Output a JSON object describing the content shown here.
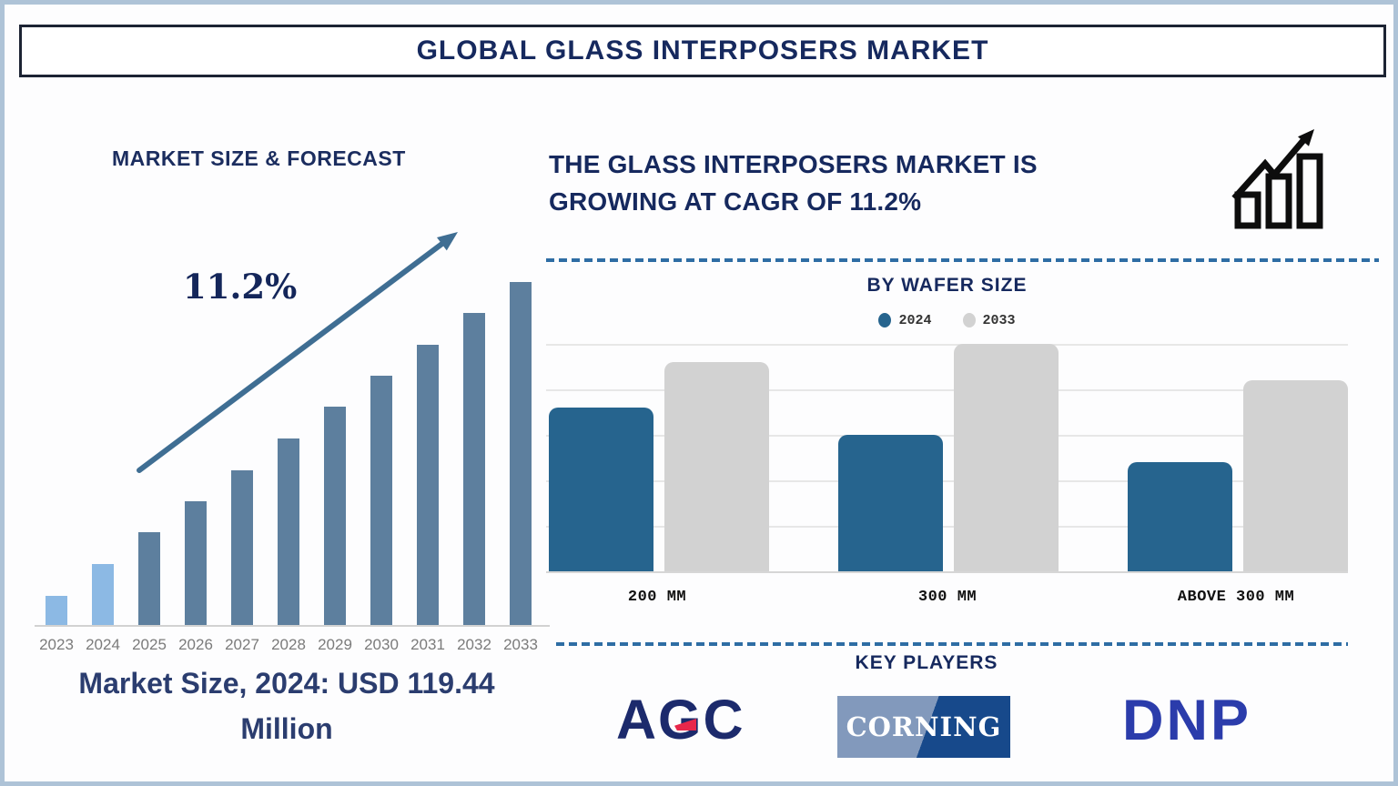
{
  "header": {
    "title": "GLOBAL GLASS INTERPOSERS MARKET"
  },
  "left_panel": {
    "section_title": "MARKET SIZE & FORECAST",
    "cagr_label": "11.2%",
    "caption": "Market Size, 2024: USD 119.44 Million"
  },
  "right_panel": {
    "headline": "THE GLASS INTERPOSERS MARKET IS GROWING AT CAGR OF 11.2%",
    "growth_icon": "growth-chart-icon",
    "key_players_title": "KEY PLAYERS",
    "players": [
      {
        "name": "AGC",
        "text_color": "#1c2a6c",
        "accent_color": "#e8274b"
      },
      {
        "name": "CORNING",
        "text_color": "#ffffff",
        "bg_left": "#8299bc",
        "bg_right": "#17498b"
      },
      {
        "name": "DNP",
        "text_color": "#2b3cab"
      }
    ]
  },
  "chart_data": [
    {
      "type": "bar",
      "title": "MARKET SIZE & FORECAST",
      "categories": [
        "2023",
        "2024",
        "2025",
        "2026",
        "2027",
        "2028",
        "2029",
        "2030",
        "2031",
        "2032",
        "2033"
      ],
      "values": [
        8.5,
        17.8,
        27,
        36,
        45,
        54.4,
        63.7,
        72.7,
        81.7,
        91,
        100
      ],
      "values_note": "relative bar heights in % of tallest (2033) bar; value axis not labeled in source",
      "known_point": {
        "year": "2024",
        "value": "USD 119.44 Million"
      },
      "annotation": "11.2%",
      "bar_colors": [
        "#8cb9e4",
        "#8cb9e4",
        "#5d7f9e",
        "#5d7f9e",
        "#5d7f9e",
        "#5d7f9e",
        "#5d7f9e",
        "#5d7f9e",
        "#5d7f9e",
        "#5d7f9e",
        "#5d7f9e"
      ],
      "grid": false,
      "legend": false,
      "xlabel": "",
      "ylabel": ""
    },
    {
      "type": "bar",
      "title": "BY WAFER SIZE",
      "categories": [
        "200 MM",
        "300 MM",
        "ABOVE 300 MM"
      ],
      "series": [
        {
          "name": "2024",
          "color": "#26648e",
          "values": [
            3.6,
            3.0,
            2.4
          ]
        },
        {
          "name": "2033",
          "color": "#d2d2d2",
          "values": [
            4.6,
            5.0,
            4.2
          ]
        }
      ],
      "values_note": "relative units read from unlabeled gridlines (1 unit = 1 gridline spacing)",
      "ylim": [
        0,
        5
      ],
      "grid": true,
      "legend_position": "top",
      "xlabel": "",
      "ylabel": ""
    }
  ],
  "colors": {
    "navy_text": "#16295e",
    "steel_bar": "#5d7f9e",
    "light_bar": "#8cb9e4",
    "arrow": "#3f6e93",
    "divider": "#2e6da4",
    "year_label": "#7b7b7b",
    "frame_border": "#aec3d7"
  }
}
